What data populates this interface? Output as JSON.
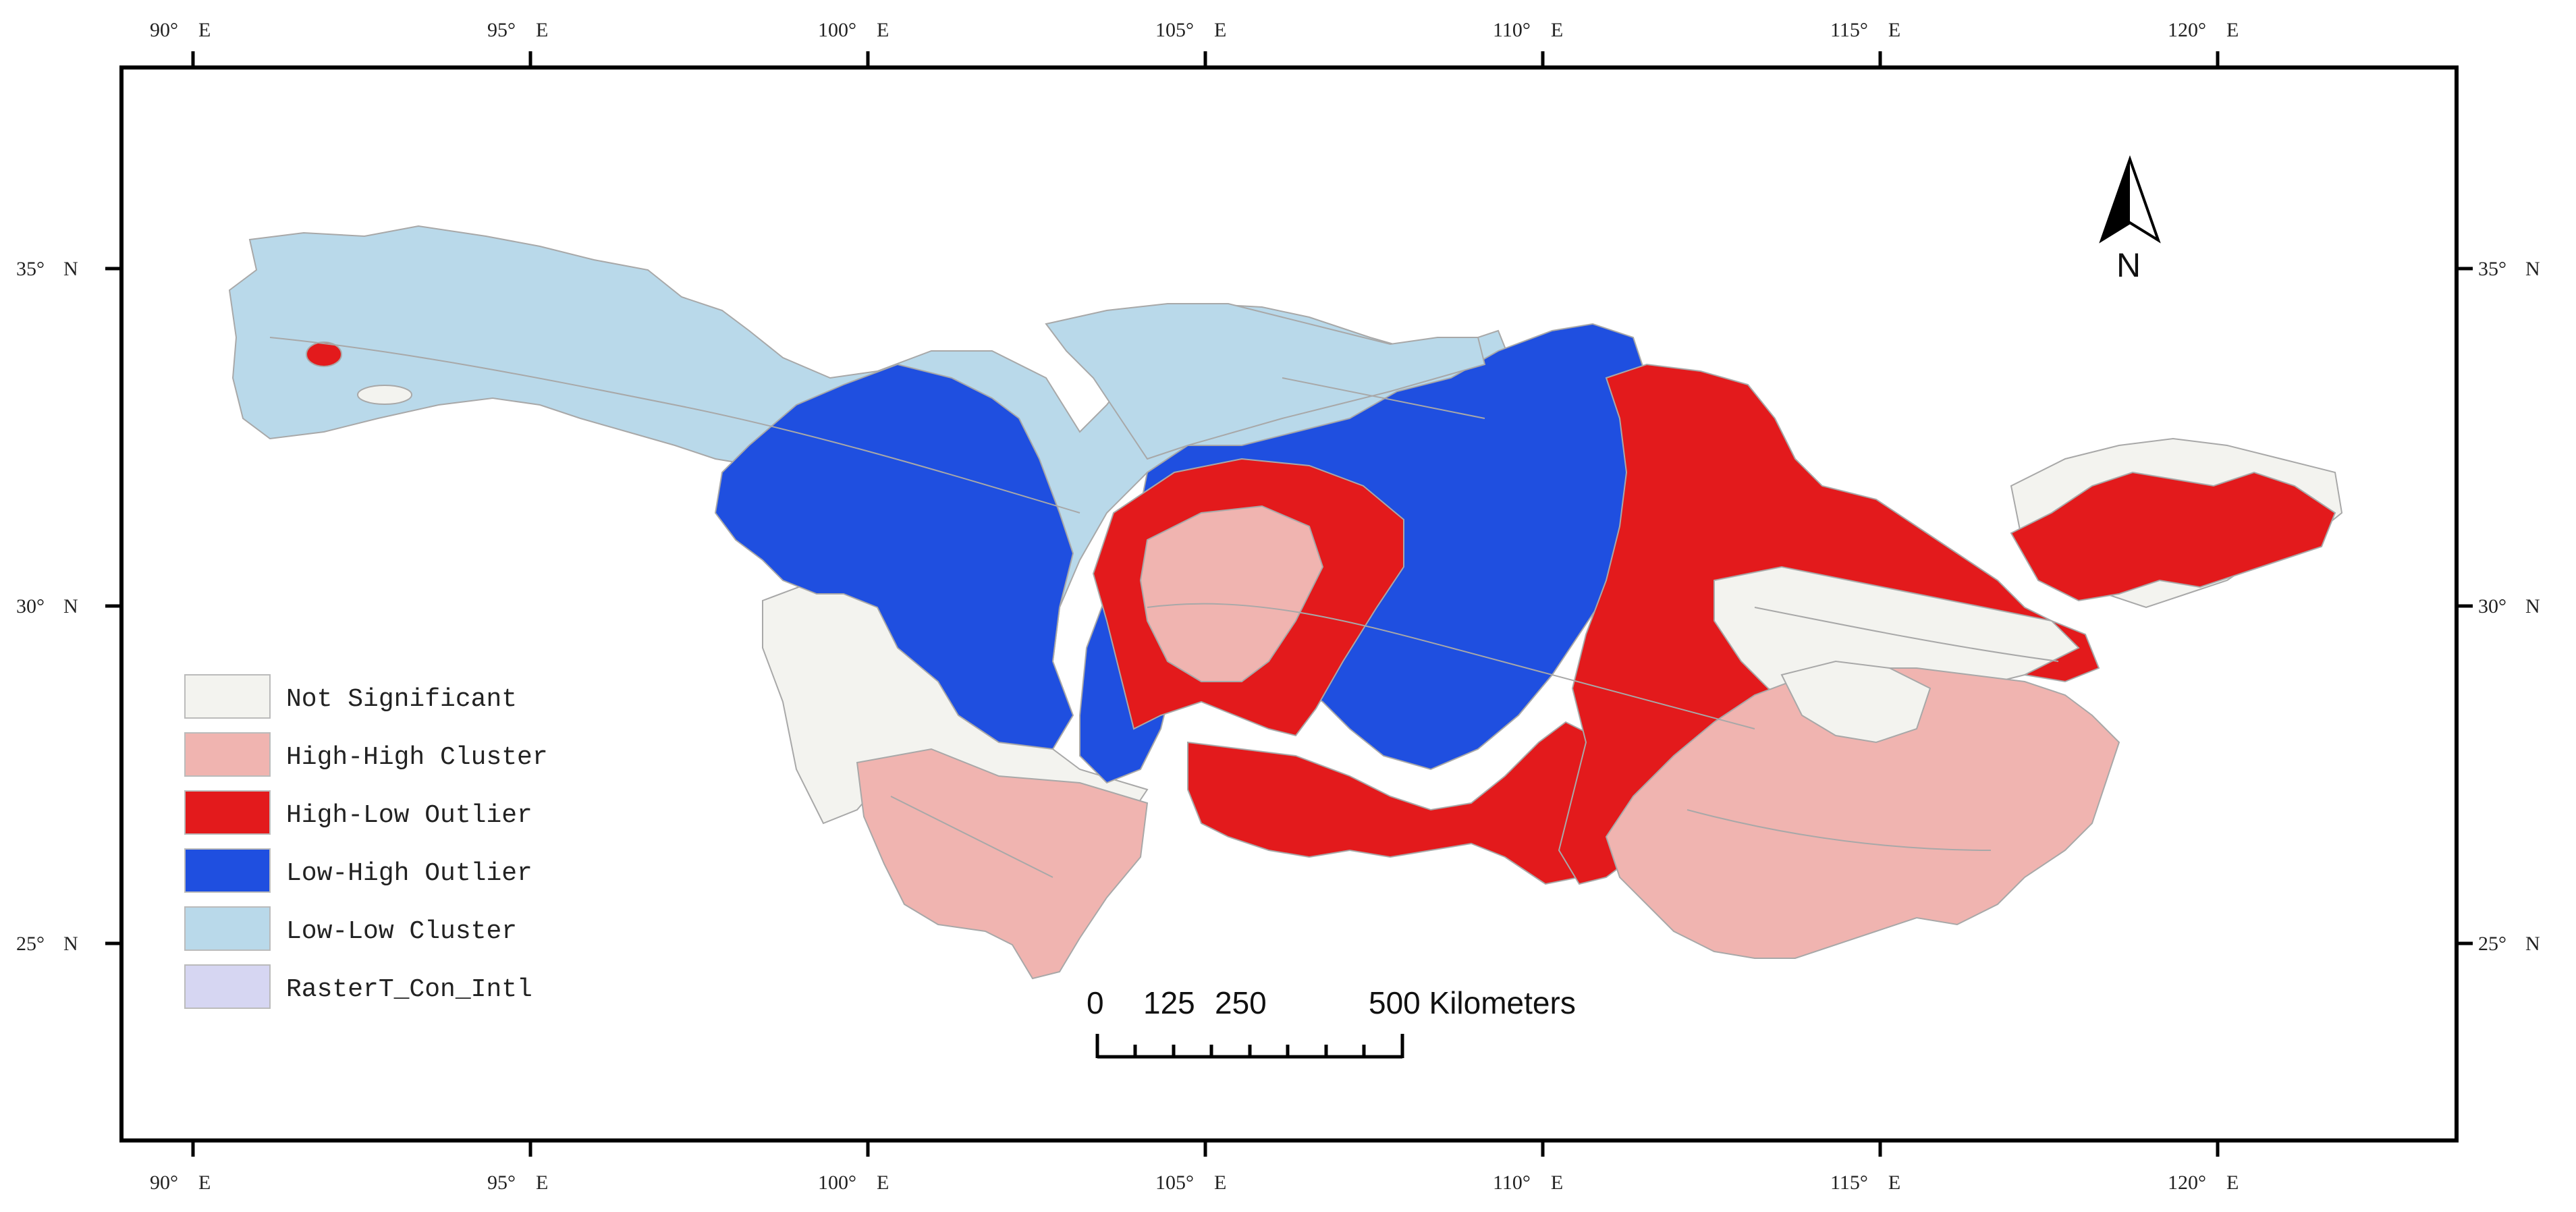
{
  "map": {
    "colors": {
      "not_significant": "#f3f3ef",
      "high_high": "#f0b4b0",
      "high_low": "#e31a1c",
      "low_high": "#1f4fe0",
      "low_low": "#b9d9ea",
      "raster": "#d6d6f2",
      "frame": "#000000",
      "boundaries": "#a8a8a8"
    },
    "longitude_labels": [
      {
        "deg": "90°",
        "hem": "E"
      },
      {
        "deg": "95°",
        "hem": "E"
      },
      {
        "deg": "100°",
        "hem": "E"
      },
      {
        "deg": "105°",
        "hem": "E"
      },
      {
        "deg": "110°",
        "hem": "E"
      },
      {
        "deg": "115°",
        "hem": "E"
      },
      {
        "deg": "120°",
        "hem": "E"
      }
    ],
    "latitude_labels": [
      {
        "deg": "35°",
        "hem": "N"
      },
      {
        "deg": "30°",
        "hem": "N"
      },
      {
        "deg": "25°",
        "hem": "N"
      }
    ],
    "legend": [
      {
        "label": "Not Significant",
        "color_key": "not_significant"
      },
      {
        "label": "High-High Cluster",
        "color_key": "high_high"
      },
      {
        "label": "High-Low Outlier",
        "color_key": "high_low"
      },
      {
        "label": "Low-High Outlier",
        "color_key": "low_high"
      },
      {
        "label": "Low-Low Cluster",
        "color_key": "low_low"
      },
      {
        "label": "RasterT_Con_Intl",
        "color_key": "raster"
      }
    ],
    "scale_bar": {
      "labels": [
        "0",
        "125",
        "250",
        "500 Kilometers"
      ]
    },
    "north_arrow": {
      "label": "N"
    }
  }
}
